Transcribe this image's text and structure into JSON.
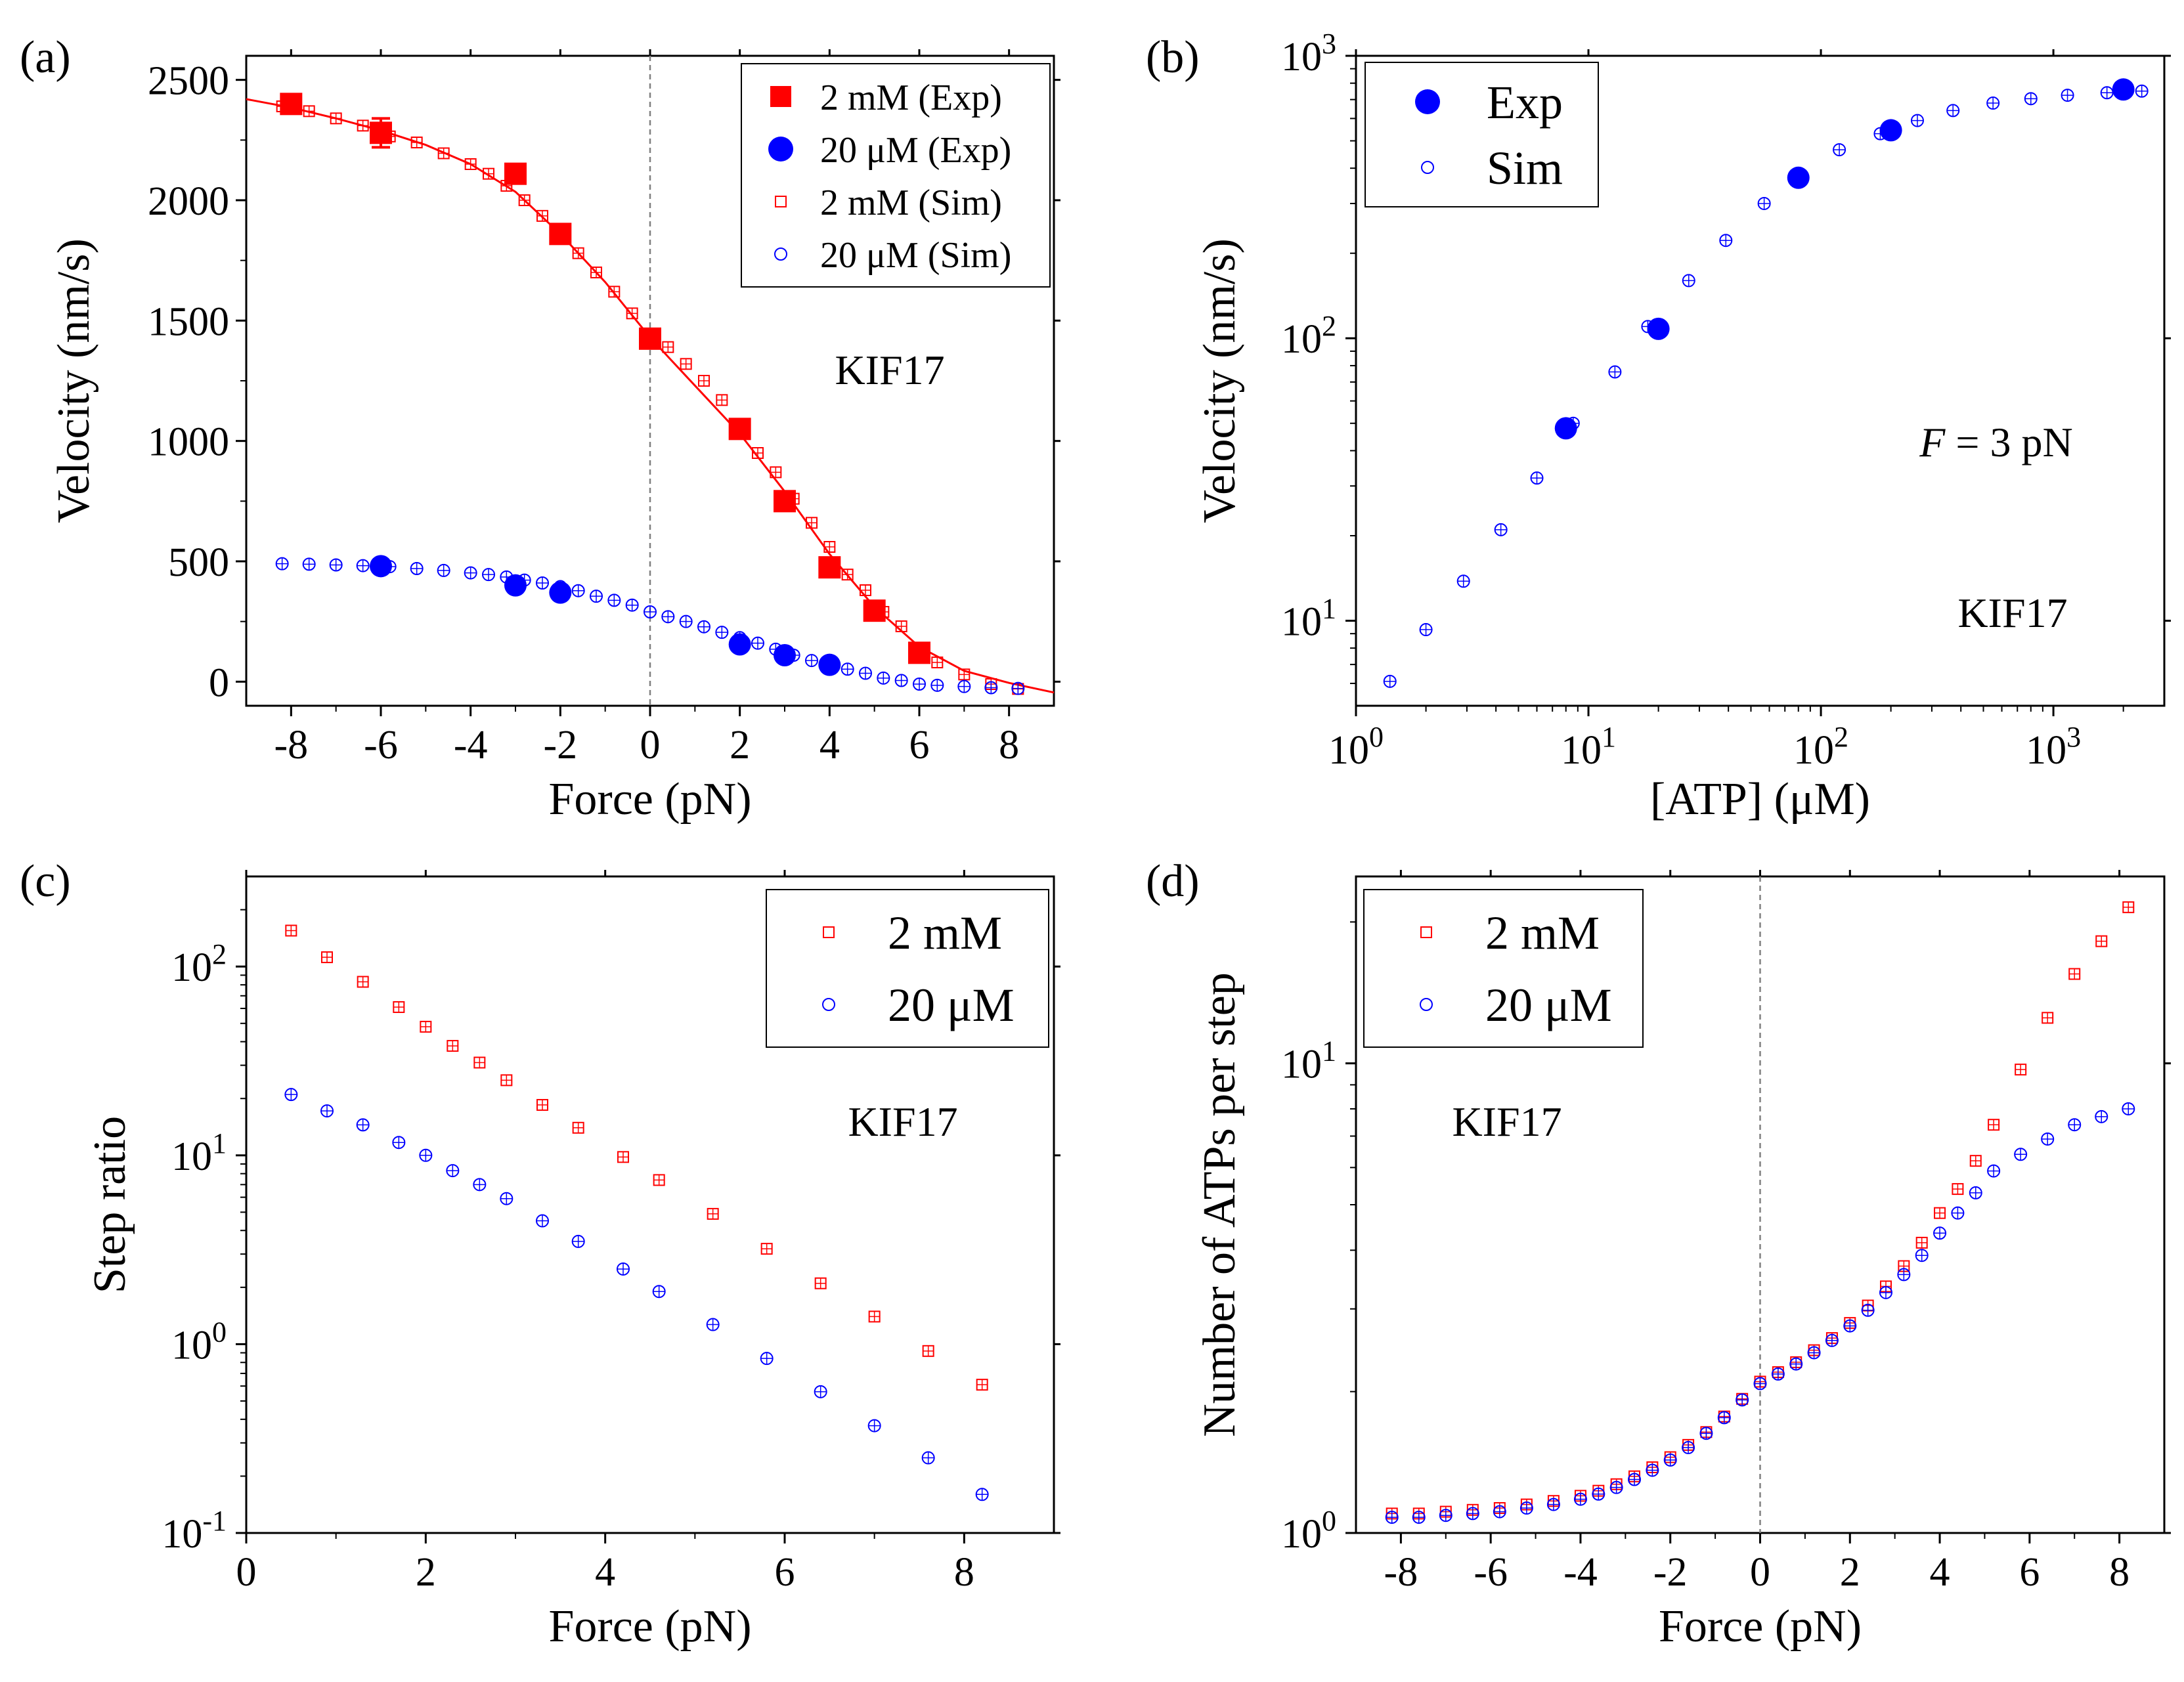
{
  "colors": {
    "red": "#ff0000",
    "blue": "#0000ff",
    "axis": "#000000",
    "zero_line": "#808080"
  },
  "chart_data": [
    {
      "panel": "(a)",
      "type": "scatter",
      "xlabel": "Force (pN)",
      "ylabel": "Velocity (nm/s)",
      "xlim": [
        -9,
        9
      ],
      "ylim": [
        -100,
        2600
      ],
      "xticks": [
        -8,
        -6,
        -4,
        -2,
        0,
        2,
        4,
        6,
        8
      ],
      "yticks": [
        0,
        500,
        1000,
        1500,
        2000,
        2500
      ],
      "xtick_labels": [
        "-8",
        "-6",
        "-4",
        "-2",
        "0",
        "2",
        "4",
        "6",
        "8"
      ],
      "ytick_labels": [
        "0",
        "500",
        "1000",
        "1500",
        "2000",
        "2500"
      ],
      "annotation": "KIF17",
      "vline_x": 0,
      "legend": [
        "2 mM (Exp)",
        "20 μM (Exp)",
        "2 mM (Sim)",
        "20 μM (Sim)"
      ],
      "series": [
        {
          "name": "2 mM (Exp)",
          "marker": "filled-square",
          "color": "red",
          "x": [
            -8,
            -6,
            -3,
            -2,
            0,
            2,
            3,
            4,
            5,
            6
          ],
          "y": [
            2400,
            2280,
            2110,
            1860,
            1425,
            1050,
            750,
            475,
            295,
            120
          ],
          "err": [
            35,
            60,
            35,
            25,
            30,
            20,
            20,
            20,
            15,
            15
          ]
        },
        {
          "name": "20 μM (Exp)",
          "marker": "filled-circle",
          "color": "blue",
          "x": [
            -6,
            -3,
            -2,
            2,
            3,
            4
          ],
          "y": [
            480,
            400,
            370,
            155,
            110,
            70
          ]
        },
        {
          "name": "2 mM (Sim)",
          "marker": "open-square",
          "color": "red",
          "x": [
            -8.2,
            -7.6,
            -7.0,
            -6.4,
            -5.8,
            -5.2,
            -4.6,
            -4.0,
            -3.6,
            -3.2,
            -2.8,
            -2.4,
            -2.0,
            -1.6,
            -1.2,
            -0.8,
            -0.4,
            0.0,
            0.4,
            0.8,
            1.2,
            1.6,
            2.0,
            2.4,
            2.8,
            3.2,
            3.6,
            4.0,
            4.4,
            4.8,
            5.2,
            5.6,
            6.0,
            6.4,
            7.0,
            7.6,
            8.2
          ],
          "y": [
            2390,
            2370,
            2340,
            2310,
            2265,
            2240,
            2195,
            2150,
            2110,
            2060,
            2000,
            1935,
            1860,
            1780,
            1700,
            1620,
            1530,
            1430,
            1390,
            1320,
            1250,
            1170,
            1060,
            950,
            870,
            760,
            660,
            560,
            445,
            380,
            290,
            230,
            125,
            80,
            30,
            -10,
            -30
          ]
        },
        {
          "name": "20 μM (Sim)",
          "marker": "open-circle",
          "color": "blue",
          "x": [
            -8.2,
            -7.6,
            -7.0,
            -6.4,
            -5.8,
            -5.2,
            -4.6,
            -4.0,
            -3.6,
            -3.2,
            -2.8,
            -2.4,
            -2.0,
            -1.6,
            -1.2,
            -0.8,
            -0.4,
            0.0,
            0.4,
            0.8,
            1.2,
            1.6,
            2.0,
            2.4,
            2.8,
            3.2,
            3.6,
            4.0,
            4.4,
            4.8,
            5.2,
            5.6,
            6.0,
            6.4,
            7.0,
            7.6,
            8.2
          ],
          "y": [
            490,
            488,
            485,
            482,
            478,
            470,
            462,
            452,
            445,
            435,
            422,
            410,
            395,
            378,
            355,
            338,
            318,
            290,
            270,
            250,
            228,
            205,
            183,
            160,
            135,
            110,
            88,
            68,
            52,
            35,
            15,
            5,
            -10,
            -15,
            -20,
            -25,
            -28
          ]
        }
      ],
      "fit_curve": {
        "color": "red",
        "x": [
          -9,
          -8,
          -7,
          -6,
          -5,
          -4,
          -3,
          -2,
          -1,
          0,
          1,
          2,
          3,
          4,
          5,
          6,
          7,
          8,
          9
        ],
        "y": [
          2420,
          2385,
          2340,
          2290,
          2230,
          2150,
          2035,
          1860,
          1660,
          1430,
          1230,
          1030,
          790,
          530,
          310,
          145,
          45,
          -5,
          -45
        ]
      }
    },
    {
      "panel": "(b)",
      "type": "scatter",
      "xlabel": "[ATP] (μM)",
      "ylabel": "Velocity (nm/s)",
      "xscale": "log",
      "yscale": "log",
      "xlim": [
        1,
        3000
      ],
      "ylim": [
        5,
        1000
      ],
      "xticks": [
        1,
        10,
        100,
        1000
      ],
      "yticks": [
        10,
        100,
        1000
      ],
      "xtick_labels": [
        [
          "10",
          "0"
        ],
        [
          "10",
          "1"
        ],
        [
          "10",
          "2"
        ],
        [
          "10",
          "3"
        ]
      ],
      "ytick_labels": [
        [
          "10",
          "1"
        ],
        [
          "10",
          "2"
        ],
        [
          "10",
          "3"
        ]
      ],
      "annotation": "KIF17",
      "annotation2": {
        "italic": "F",
        "rest": " = 3 pN"
      },
      "legend": [
        "Exp",
        "Sim"
      ],
      "series": [
        {
          "name": "Exp",
          "marker": "filled-circle",
          "color": "blue",
          "x": [
            8,
            20,
            80,
            200,
            2000
          ],
          "y": [
            48,
            108,
            370,
            545,
            760
          ]
        },
        {
          "name": "Sim",
          "marker": "open-circle",
          "color": "blue",
          "x": [
            1.4,
            2.0,
            2.9,
            4.2,
            6.0,
            8.6,
            13,
            18,
            27,
            39,
            57,
            82,
            120,
            180,
            260,
            370,
            550,
            800,
            1150,
            1700,
            2400
          ],
          "y": [
            6.1,
            9.3,
            13.8,
            21,
            32,
            50,
            76,
            110,
            160,
            222,
            300,
            380,
            465,
            530,
            590,
            640,
            680,
            705,
            725,
            740,
            750
          ]
        }
      ]
    },
    {
      "panel": "(c)",
      "type": "scatter",
      "xlabel": "Force (pN)",
      "ylabel": "Step ratio",
      "yscale": "log",
      "xlim": [
        0,
        9
      ],
      "ylim": [
        0.1,
        300
      ],
      "xticks": [
        0,
        2,
        4,
        6,
        8
      ],
      "yticks": [
        0.1,
        1,
        10,
        100
      ],
      "xtick_labels": [
        "0",
        "2",
        "4",
        "6",
        "8"
      ],
      "ytick_labels": [
        [
          "10",
          "-1"
        ],
        [
          "10",
          "0"
        ],
        [
          "10",
          "1"
        ],
        [
          "10",
          "2"
        ]
      ],
      "annotation": "KIF17",
      "legend": [
        "2 mM",
        "20 μM"
      ],
      "series": [
        {
          "name": "2 mM",
          "marker": "open-square",
          "color": "red",
          "x": [
            0.5,
            0.9,
            1.3,
            1.7,
            2.0,
            2.3,
            2.6,
            2.9,
            3.3,
            3.7,
            4.2,
            4.6,
            5.2,
            5.8,
            6.4,
            7.0,
            7.6,
            8.2
          ],
          "y": [
            155,
            112,
            83,
            61,
            48,
            38,
            31,
            25,
            18.5,
            14,
            9.8,
            7.4,
            4.9,
            3.2,
            2.1,
            1.4,
            0.92,
            0.61
          ]
        },
        {
          "name": "20 μM",
          "marker": "open-circle",
          "color": "blue",
          "x": [
            0.5,
            0.9,
            1.3,
            1.7,
            2.0,
            2.3,
            2.6,
            2.9,
            3.3,
            3.7,
            4.2,
            4.6,
            5.2,
            5.8,
            6.4,
            7.0,
            7.6,
            8.2
          ],
          "y": [
            21,
            17.2,
            14.5,
            11.7,
            10,
            8.3,
            7,
            5.9,
            4.5,
            3.5,
            2.5,
            1.9,
            1.27,
            0.84,
            0.56,
            0.37,
            0.25,
            0.16
          ]
        }
      ]
    },
    {
      "panel": "(d)",
      "type": "scatter",
      "xlabel": "Force (pN)",
      "ylabel": "Number of ATPs per step",
      "yscale": "log",
      "xlim": [
        -9,
        9
      ],
      "ylim": [
        1,
        25
      ],
      "xticks": [
        -8,
        -6,
        -4,
        -2,
        0,
        2,
        4,
        6,
        8
      ],
      "yticks": [
        1,
        10
      ],
      "xtick_labels": [
        "-8",
        "-6",
        "-4",
        "-2",
        "0",
        "2",
        "4",
        "6",
        "8"
      ],
      "ytick_labels": [
        [
          "10",
          "0"
        ],
        [
          "10",
          "1"
        ]
      ],
      "annotation": "KIF17",
      "vline_x": 0,
      "legend": [
        "2 mM",
        "20 μM"
      ],
      "series": [
        {
          "name": "2 mM",
          "marker": "open-square",
          "color": "red",
          "x": [
            -8.2,
            -7.6,
            -7.0,
            -6.4,
            -5.8,
            -5.2,
            -4.6,
            -4.0,
            -3.6,
            -3.2,
            -2.8,
            -2.4,
            -2.0,
            -1.6,
            -1.2,
            -0.8,
            -0.4,
            0.0,
            0.4,
            0.8,
            1.2,
            1.6,
            2.0,
            2.4,
            2.8,
            3.2,
            3.6,
            4.0,
            4.4,
            4.8,
            5.2,
            5.8,
            6.4,
            7.0,
            7.6,
            8.2
          ],
          "y": [
            1.1,
            1.1,
            1.11,
            1.12,
            1.13,
            1.15,
            1.17,
            1.2,
            1.23,
            1.27,
            1.32,
            1.38,
            1.45,
            1.54,
            1.64,
            1.77,
            1.93,
            2.1,
            2.2,
            2.31,
            2.45,
            2.6,
            2.8,
            3.05,
            3.35,
            3.7,
            4.15,
            4.8,
            5.4,
            6.2,
            7.4,
            9.7,
            12.5,
            15.5,
            18.2,
            21.5
          ]
        },
        {
          "name": "20 μM",
          "marker": "open-circle",
          "color": "blue",
          "x": [
            -8.2,
            -7.6,
            -7.0,
            -6.4,
            -5.8,
            -5.2,
            -4.6,
            -4.0,
            -3.6,
            -3.2,
            -2.8,
            -2.4,
            -2.0,
            -1.6,
            -1.2,
            -0.8,
            -0.4,
            0.0,
            0.4,
            0.8,
            1.2,
            1.6,
            2.0,
            2.4,
            2.8,
            3.2,
            3.6,
            4.0,
            4.4,
            4.8,
            5.2,
            5.8,
            6.4,
            7.0,
            7.6,
            8.2
          ],
          "y": [
            1.08,
            1.08,
            1.09,
            1.1,
            1.11,
            1.13,
            1.15,
            1.18,
            1.21,
            1.25,
            1.3,
            1.36,
            1.43,
            1.52,
            1.63,
            1.76,
            1.92,
            2.08,
            2.18,
            2.29,
            2.42,
            2.57,
            2.76,
            2.98,
            3.25,
            3.55,
            3.9,
            4.35,
            4.8,
            5.3,
            5.9,
            6.4,
            6.9,
            7.4,
            7.7,
            8.0
          ]
        }
      ]
    }
  ]
}
